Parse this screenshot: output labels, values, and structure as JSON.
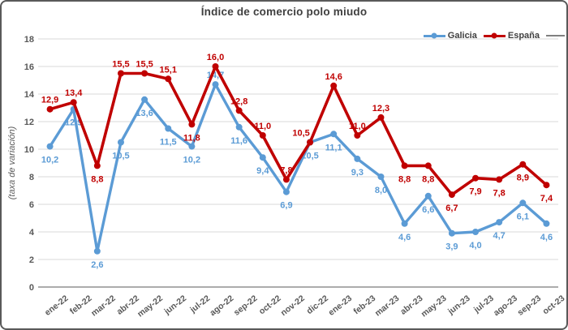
{
  "chart_data": {
    "type": "line",
    "title": "Índice de comercio polo miudo",
    "xlabel": "",
    "ylabel": "(taxa de variación)",
    "ylim": [
      0,
      18
    ],
    "y_step": 2,
    "y_ticks": [
      "0",
      "2",
      "4",
      "6",
      "8",
      "10",
      "12",
      "14",
      "16",
      "18"
    ],
    "grid": true,
    "legend_position": "top-right",
    "decimal_separator": ",",
    "categories": [
      "ene-22",
      "feb-22",
      "mar-22",
      "abr-22",
      "may-22",
      "jun-22",
      "jul-22",
      "ago-22",
      "sep-22",
      "oct-22",
      "nov-22",
      "dic-22",
      "ene-23",
      "feb-23",
      "mar-23",
      "abr-23",
      "may-23",
      "jun-23",
      "jul-23",
      "ago-23",
      "sep-23",
      "oct-23"
    ],
    "series": [
      {
        "name": "Galicia",
        "color": "#5B9BD5",
        "values": [
          10.2,
          12.9,
          2.6,
          10.5,
          13.6,
          11.5,
          10.2,
          14.7,
          11.6,
          9.4,
          6.9,
          10.5,
          11.1,
          9.3,
          8.0,
          4.6,
          6.6,
          3.9,
          4.0,
          4.7,
          6.1,
          4.6
        ],
        "label_side": [
          "below",
          "below",
          "below",
          "below",
          "below",
          "below",
          "below",
          "above",
          "below",
          "below",
          "below",
          "below",
          "below",
          "below",
          "below",
          "below",
          "below",
          "below",
          "below",
          "below",
          "below",
          "below"
        ],
        "label_dx": {}
      },
      {
        "name": "España",
        "color": "#C00000",
        "values": [
          12.9,
          13.4,
          8.8,
          15.5,
          15.5,
          15.1,
          11.8,
          16.0,
          12.8,
          11.0,
          7.8,
          10.5,
          14.6,
          11.0,
          12.3,
          8.8,
          8.8,
          6.7,
          7.9,
          7.8,
          8.9,
          7.4
        ],
        "label_side": [
          "above",
          "above",
          "below",
          "above",
          "above",
          "above",
          "below",
          "above",
          "above",
          "above",
          "above",
          "above",
          "above",
          "above",
          "above",
          "below",
          "below",
          "below",
          "below",
          "below",
          "below",
          "below"
        ],
        "label_dx": {
          "11": -11
        }
      }
    ],
    "legend_trailing_line_color": "#808080"
  },
  "colors": {
    "background": "#FFFFFF",
    "frame_border": "#595959",
    "grid": "#D9D9D9",
    "axis_line": "#7A7A7A",
    "tick_text": "#595959",
    "title_text": "#3F3F3F",
    "legend_text": "#404040"
  }
}
